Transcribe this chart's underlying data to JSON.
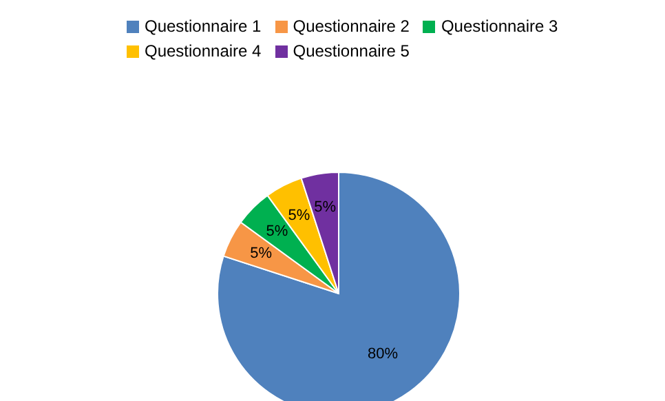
{
  "chart_data": {
    "type": "pie",
    "categories": [
      "Questionnaire 1",
      "Questionnaire 2",
      "Questionnaire 3",
      "Questionnaire 4",
      "Questionnaire 5"
    ],
    "values": [
      80,
      5,
      5,
      5,
      5
    ],
    "colors": [
      "#4f81bd",
      "#f79646",
      "#00b050",
      "#ffc000",
      "#7030a0"
    ],
    "value_labels": [
      "80%",
      "5%",
      "5%",
      "5%",
      "5%"
    ],
    "legend": "top"
  }
}
